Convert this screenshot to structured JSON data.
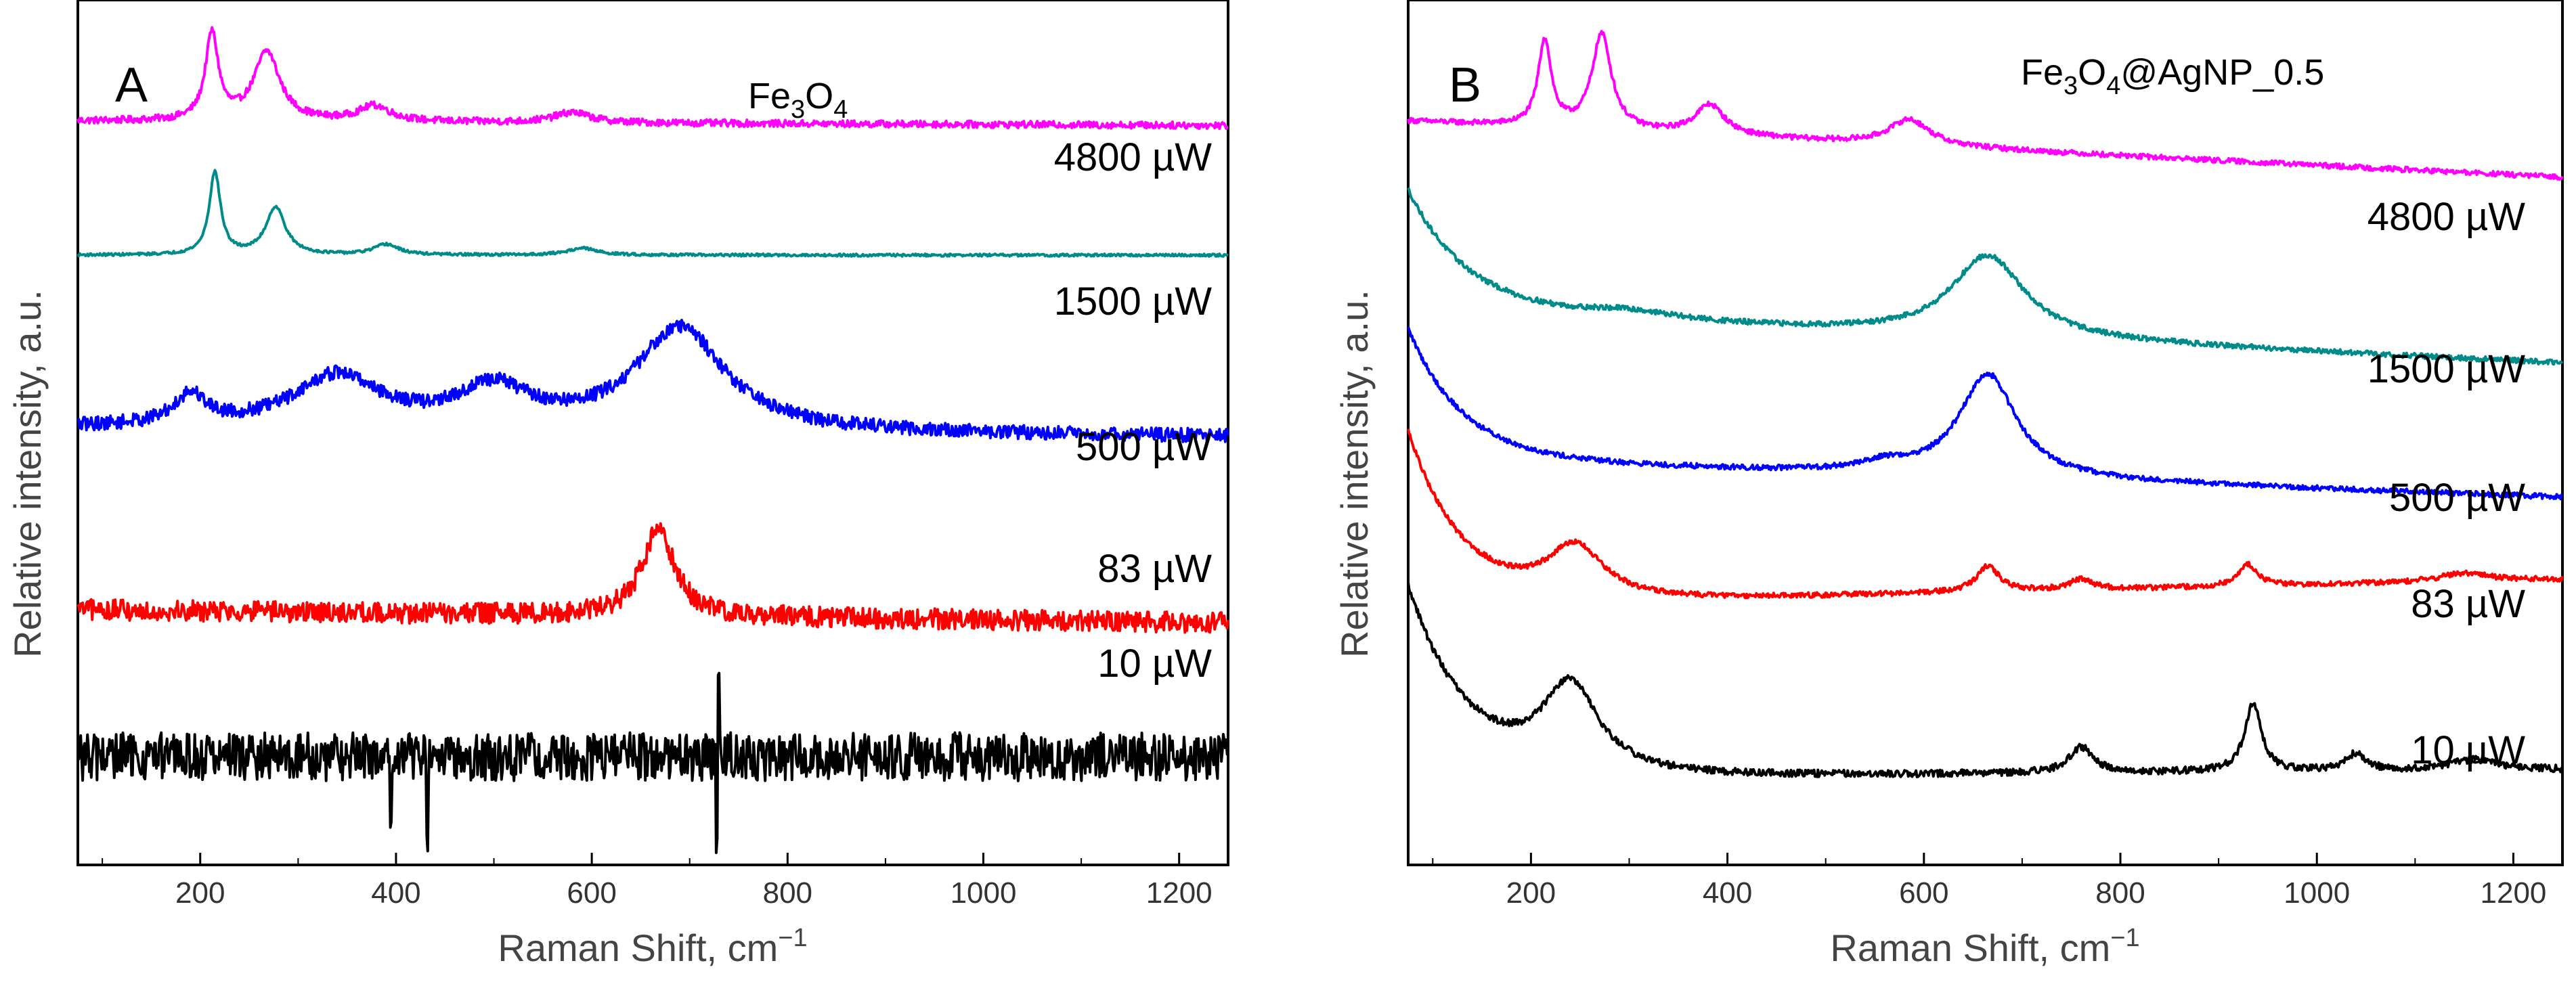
{
  "chart_data": [
    {
      "type": "line",
      "panel": "A",
      "title": "Fe3O4",
      "title_parts": {
        "base": "Fe",
        "sub1": "3",
        "mid": "O",
        "sub2": "4"
      },
      "xlabel": "Raman Shift, cm",
      "xlabel_sup": "−1",
      "ylabel": "Relative intensity, a.u.",
      "xlim": [
        75,
        1250
      ],
      "xticks": [
        200,
        400,
        600,
        800,
        1000,
        1200
      ],
      "series": [
        {
          "name": "4800 µW",
          "color": "#ff00ff",
          "baseline": 0.86,
          "noise": 0.004,
          "drift": -0.005,
          "peaks": [
            [
              212,
              0.1,
              8
            ],
            [
              268,
              0.08,
              16
            ],
            [
              378,
              0.018,
              20
            ],
            [
              580,
              0.012,
              22
            ]
          ]
        },
        {
          "name": "1500 µW",
          "color": "#008b8b",
          "baseline": 0.705,
          "noise": 0.0015,
          "drift": 0.0,
          "peaks": [
            [
              215,
              0.095,
              7
            ],
            [
              277,
              0.055,
              12
            ],
            [
              390,
              0.012,
              15
            ],
            [
              590,
              0.008,
              18
            ]
          ]
        },
        {
          "name": "500 µW",
          "color": "#0000ff",
          "baseline": 0.505,
          "noise": 0.008,
          "drift": -0.01,
          "peaks": [
            [
              190,
              0.035,
              20
            ],
            [
              340,
              0.06,
              55
            ],
            [
              500,
              0.045,
              45
            ],
            [
              690,
              0.12,
              55
            ]
          ]
        },
        {
          "name": "83 µW",
          "color": "#ff0000",
          "baseline": 0.295,
          "noise": 0.012,
          "drift": -0.015,
          "peaks": [
            [
              668,
              0.1,
              20
            ]
          ]
        },
        {
          "name": "10 µW",
          "color": "#000000",
          "baseline": 0.125,
          "noise": 0.028,
          "drift": 0.0,
          "spikes": [
            [
              395,
              -0.06
            ],
            [
              432,
              -0.1
            ],
            [
              728,
              -0.09
            ],
            [
              730,
              0.09
            ]
          ],
          "peaks": []
        }
      ]
    },
    {
      "type": "line",
      "panel": "B",
      "title": "Fe3O4@AgNP_0.5",
      "title_parts": {
        "base": "Fe",
        "sub1": "3",
        "mid": "O",
        "sub2": "4",
        "tail": "@AgNP_0.5"
      },
      "xlabel": "Raman Shift, cm",
      "xlabel_sup": "−1",
      "ylabel": "Relative intensity, a.u.",
      "xlim": [
        75,
        1250
      ],
      "xticks": [
        200,
        400,
        600,
        800,
        1000,
        1200
      ],
      "series": [
        {
          "name": "4800 µW",
          "color": "#ff00ff",
          "baseline": 0.86,
          "noise": 0.003,
          "drift": -0.065,
          "peaks": [
            [
              214,
              0.1,
              8
            ],
            [
              272,
              0.11,
              12
            ],
            [
              382,
              0.035,
              18
            ],
            [
              585,
              0.03,
              25
            ]
          ]
        },
        {
          "name": "1500 µW",
          "color": "#008b8b",
          "baseline": 0.64,
          "noise": 0.003,
          "drift": -0.06,
          "decay": [
            0.14,
            60
          ],
          "peaks": [
            [
              300,
              0.01,
              60
            ],
            [
              665,
              0.095,
              45
            ]
          ]
        },
        {
          "name": "500 µW",
          "color": "#0000ff",
          "baseline": 0.47,
          "noise": 0.003,
          "drift": -0.045,
          "decay": [
            0.15,
            55
          ],
          "peaks": [
            [
              560,
              0.01,
              30
            ],
            [
              665,
              0.12,
              35
            ]
          ]
        },
        {
          "name": "83 µW",
          "color": "#ff0000",
          "baseline": 0.3,
          "noise": 0.003,
          "drift": 0.03,
          "decay": [
            0.2,
            55
          ],
          "peaks": [
            [
              245,
              0.06,
              35
            ],
            [
              665,
              0.03,
              14
            ],
            [
              760,
              0.012,
              15
            ],
            [
              930,
              0.025,
              12
            ],
            [
              1150,
              0.01,
              30
            ]
          ]
        },
        {
          "name": "10 µW",
          "color": "#000000",
          "baseline": 0.1,
          "noise": 0.004,
          "drift": 0.01,
          "decay": [
            0.22,
            60
          ],
          "peaks": [
            [
              240,
              0.1,
              35
            ],
            [
              760,
              0.03,
              15
            ],
            [
              935,
              0.08,
              10
            ],
            [
              1040,
              0.02,
              12
            ],
            [
              1160,
              0.012,
              30
            ]
          ]
        }
      ]
    }
  ]
}
